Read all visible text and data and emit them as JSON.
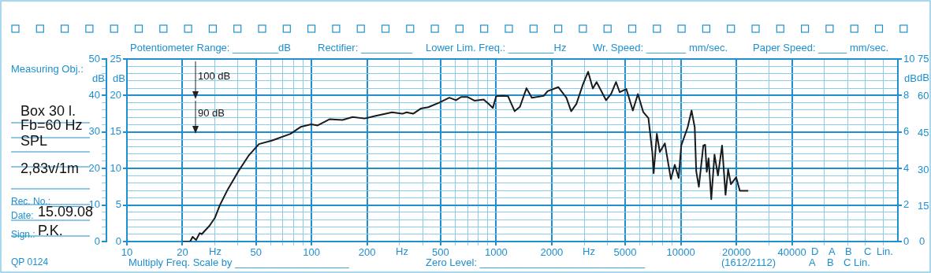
{
  "chart_data": {
    "type": "line",
    "log": "x",
    "grid": true,
    "ylabel": "dB",
    "y3label": "dB",
    "y2label": "dB",
    "x": [
      20,
      20.9,
      22,
      22.7,
      23.7,
      24.8,
      25.4,
      28,
      29.9,
      31.9,
      35.2,
      40.1,
      45.6,
      51.9,
      61.3,
      76.9,
      87.3,
      99.6,
      108,
      125,
      147,
      167,
      194,
      218,
      273,
      311,
      327,
      355,
      390,
      429,
      490,
      558,
      606,
      646,
      701,
      763,
      856,
      920,
      960,
      1000,
      1087,
      1160,
      1260,
      1345,
      1460,
      1560,
      1810,
      1900,
      2170,
      2400,
      2550,
      2720,
      2950,
      3150,
      3340,
      3500,
      3940,
      4200,
      4460,
      4670,
      5070,
      5500,
      5860,
      6260,
      6680,
      7020,
      7130,
      7420,
      7700,
      8200,
      8840,
      9280,
      9740,
      10060,
      10900,
      11440,
      11900,
      12130,
      12530,
      13250,
      13560,
      13830,
      14150,
      14630,
      15230,
      15900,
      16740,
      17480,
      18050,
      18690,
      19950,
      20900,
      23200
    ],
    "series": [
      {
        "color": "#1a1a1a",
        "values": [
          0,
          0,
          0,
          1.3,
          0.4,
          2.3,
          2,
          4.3,
          6.4,
          10,
          14.3,
          19.2,
          23.5,
          26.7,
          27.7,
          29.5,
          31.4,
          32.1,
          31.8,
          33.5,
          33.3,
          34.1,
          33.7,
          34.3,
          35.4,
          35,
          35.4,
          35,
          36.4,
          36.8,
          38,
          39.4,
          38.7,
          39.6,
          39.6,
          38.6,
          38.9,
          37.5,
          36.6,
          39.8,
          39.9,
          39.8,
          35.7,
          36.9,
          42,
          39.4,
          39.9,
          41.2,
          42.3,
          39.4,
          35.7,
          37.7,
          43,
          46.5,
          41.9,
          43.7,
          38.7,
          40.5,
          43.7,
          40.9,
          41.8,
          35.9,
          40.4,
          35.5,
          33.8,
          24.2,
          18.7,
          29.5,
          24.5,
          26.9,
          17.1,
          21,
          17.4,
          26.3,
          31.3,
          35.9,
          31.3,
          19.2,
          15,
          26.3,
          26.5,
          19.1,
          22.8,
          11.6,
          23.8,
          18.1,
          26.3,
          12.8,
          19.8,
          15.7,
          17.6,
          13.9,
          13.9
        ]
      }
    ],
    "xlim": [
      10,
      150000
    ],
    "xticks": [
      10,
      20,
      {
        "value": 30,
        "label": null
      },
      {
        "value": 40,
        "label": null
      },
      50,
      {
        "value": 60,
        "label": null
      },
      {
        "value": 70,
        "label": null
      },
      {
        "value": 80,
        "label": null
      },
      {
        "value": 90,
        "label": null
      },
      100,
      200,
      {
        "value": 300,
        "label": null
      },
      {
        "value": 400,
        "label": null
      },
      500,
      {
        "value": 600,
        "label": null
      },
      {
        "value": 700,
        "label": null
      },
      {
        "value": 800,
        "label": null
      },
      {
        "value": 900,
        "label": null
      },
      1000,
      2000,
      {
        "value": 3000,
        "label": null
      },
      {
        "value": 4000,
        "label": null
      },
      5000,
      {
        "value": 6000,
        "label": null
      },
      {
        "value": 7000,
        "label": null
      },
      {
        "value": 8000,
        "label": null
      },
      {
        "value": 9000,
        "label": null
      },
      10000,
      20000,
      {
        "value": 30000,
        "label": null
      },
      40000,
      {
        "value": 60000,
        "label": null
      },
      {
        "value": 80000,
        "label": null
      },
      {
        "value": 100000,
        "label": null
      },
      {
        "value": 125000,
        "label": null
      }
    ],
    "ylim": [
      0,
      50
    ],
    "yticks": [
      0,
      {
        "value": 2,
        "label": null
      },
      {
        "value": 4,
        "label": null
      },
      {
        "value": 6,
        "label": null
      },
      {
        "value": 8,
        "label": null
      },
      10,
      {
        "value": 12,
        "label": null
      },
      {
        "value": 14,
        "label": null
      },
      {
        "value": 16,
        "label": null
      },
      {
        "value": 18,
        "label": null
      },
      20,
      {
        "value": 22,
        "label": null
      },
      {
        "value": 24,
        "label": null
      },
      {
        "value": 26,
        "label": null
      },
      {
        "value": 28,
        "label": null
      },
      30,
      {
        "value": 32,
        "label": null
      },
      {
        "value": 34,
        "label": null
      },
      {
        "value": 36,
        "label": null
      },
      {
        "value": 38,
        "label": null
      },
      40,
      {
        "value": 42,
        "label": null
      },
      {
        "value": 44,
        "label": null
      },
      {
        "value": 46,
        "label": null
      },
      {
        "value": 48,
        "label": null
      },
      50
    ],
    "y3lim": [
      0,
      25
    ],
    "y3ticks": [
      0,
      5,
      10,
      15,
      20,
      25
    ],
    "y2lim": [
      0,
      10
    ],
    "y2ticks": [
      0,
      2,
      4,
      6,
      8,
      10
    ],
    "annotations": [
      "Potentiometer Range: ________dB",
      "Rectifier: _________",
      "Lower Lim. Freq.: ________Hz",
      "Wr.  Speed: _______ mm/sec.",
      "Paper Speed: _____ mm/sec.",
      "Measuring Obj.:",
      "Box 30 l.",
      "Fb=60 Hz",
      "SPL",
      "2,83v/1m",
      "Rec.  No.: _____",
      "Date:",
      "15.09.08",
      "Sign.:",
      "P.K.",
      "QP  0124",
      "Multiply Freq. Scale by ____________________",
      "Zero Level: _____________________________",
      "(1612/2112)",
      "Hz",
      "Hz",
      "Hz",
      "D",
      "A",
      "B",
      "C",
      "Lin.",
      "A",
      "B",
      "C Lin.",
      "100 dB",
      "90 dB",
      "dB",
      "75",
      "60",
      "45",
      "30",
      "15",
      "0"
    ]
  }
}
